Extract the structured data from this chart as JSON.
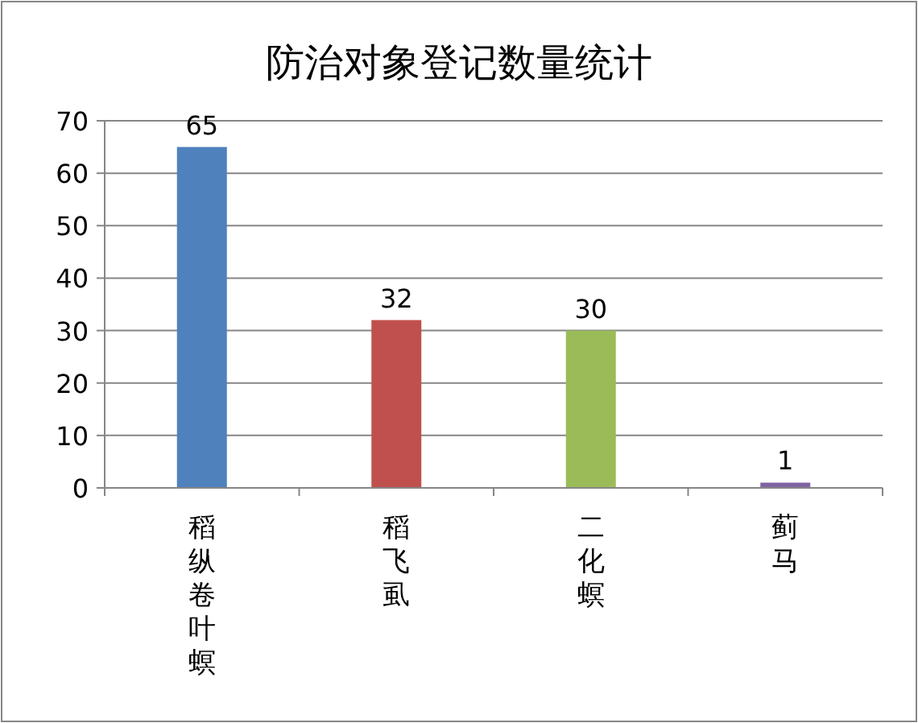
{
  "chart_data": {
    "type": "bar",
    "title": "防治对象登记数量统计",
    "categories": [
      "稻纵卷叶螟",
      "稻飞虱",
      "二化螟",
      "蓟马"
    ],
    "values": [
      65,
      32,
      30,
      1
    ],
    "colors": [
      "#4f81bd",
      "#c0504d",
      "#9bbb59",
      "#8064a2"
    ],
    "ylim": [
      0,
      70
    ],
    "yticks": [
      0,
      10,
      20,
      30,
      40,
      50,
      60,
      70
    ],
    "grid": "y",
    "data_labels": true
  }
}
